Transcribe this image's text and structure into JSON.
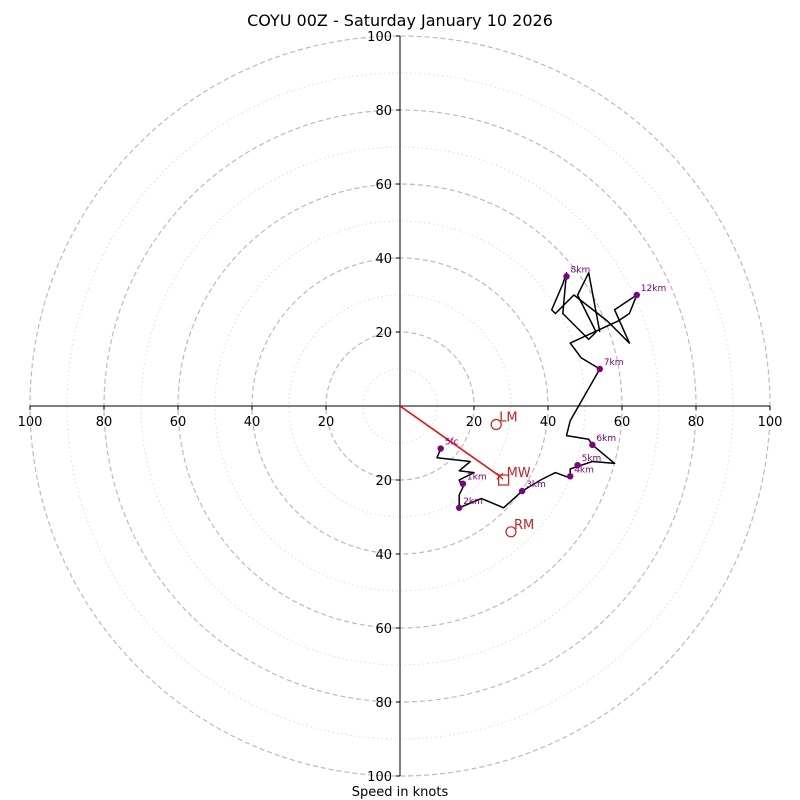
{
  "chart_data": {
    "type": "hodograph",
    "title": "COYU 00Z - Saturday January 10 2026",
    "xlabel": "Speed in knots",
    "xlim": [
      -100,
      100
    ],
    "ylim": [
      -100,
      100
    ],
    "major_rings": [
      20,
      40,
      60,
      80,
      100
    ],
    "minor_rings": [
      10,
      30,
      50,
      70,
      90
    ],
    "x_ticks": [
      {
        "value": -100,
        "label": "100"
      },
      {
        "value": -80,
        "label": "80"
      },
      {
        "value": -60,
        "label": "60"
      },
      {
        "value": -40,
        "label": "40"
      },
      {
        "value": -20,
        "label": "20"
      },
      {
        "value": 20,
        "label": "20"
      },
      {
        "value": 40,
        "label": "40"
      },
      {
        "value": 60,
        "label": "60"
      },
      {
        "value": 80,
        "label": "80"
      },
      {
        "value": 100,
        "label": "100"
      }
    ],
    "y_ticks": [
      {
        "value": 100,
        "label": "100"
      },
      {
        "value": 80,
        "label": "80"
      },
      {
        "value": 60,
        "label": "60"
      },
      {
        "value": 40,
        "label": "40"
      },
      {
        "value": 20,
        "label": "20"
      },
      {
        "value": -20,
        "label": "20"
      },
      {
        "value": -40,
        "label": "40"
      },
      {
        "value": -60,
        "label": "60"
      },
      {
        "value": -80,
        "label": "80"
      },
      {
        "value": -100,
        "label": "100"
      }
    ],
    "trace": [
      [
        11,
        -11.5
      ],
      [
        10,
        -14
      ],
      [
        19,
        -15
      ],
      [
        16,
        -17.5
      ],
      [
        20,
        -18
      ],
      [
        16,
        -20
      ],
      [
        17,
        -22
      ],
      [
        16,
        -24
      ],
      [
        16,
        -27.5
      ],
      [
        22,
        -25
      ],
      [
        28,
        -27.5
      ],
      [
        33,
        -23
      ],
      [
        38,
        -20
      ],
      [
        42,
        -18
      ],
      [
        46,
        -19.5
      ],
      [
        46,
        -17
      ],
      [
        52,
        -15
      ],
      [
        58,
        -15.5
      ],
      [
        52,
        -10.5
      ],
      [
        51,
        -9
      ],
      [
        45,
        -8
      ],
      [
        46,
        -4
      ],
      [
        50,
        3
      ],
      [
        54,
        10
      ],
      [
        49,
        13
      ],
      [
        46,
        17
      ],
      [
        59,
        23
      ],
      [
        62,
        25
      ],
      [
        64,
        30
      ],
      [
        58,
        26
      ],
      [
        62,
        17
      ],
      [
        56,
        23
      ],
      [
        47,
        30
      ],
      [
        42,
        25
      ],
      [
        41,
        26
      ],
      [
        44,
        33
      ],
      [
        45,
        36
      ],
      [
        44,
        25
      ],
      [
        49,
        20
      ],
      [
        51,
        18
      ],
      [
        53,
        20
      ],
      [
        48,
        30
      ],
      [
        51,
        36
      ],
      [
        54,
        20
      ]
    ],
    "height_points": [
      {
        "label": "5fc",
        "u": 11,
        "v": -11.5
      },
      {
        "label": "1km",
        "u": 17,
        "v": -21
      },
      {
        "label": "2km",
        "u": 16,
        "v": -27.5
      },
      {
        "label": "3km",
        "u": 33,
        "v": -23
      },
      {
        "label": "4km",
        "u": 46,
        "v": -19
      },
      {
        "label": "5km",
        "u": 48,
        "v": -16
      },
      {
        "label": "6km",
        "u": 52,
        "v": -10.5
      },
      {
        "label": "7km",
        "u": 54,
        "v": 10
      },
      {
        "label": "8km",
        "u": 45,
        "v": 35
      },
      {
        "label": "12km",
        "u": 64,
        "v": 30
      }
    ],
    "storm_motion": {
      "line_color": "#ff0000",
      "shear_vector": {
        "u": 27,
        "v": -19
      },
      "LM": {
        "label": "LM",
        "u": 26,
        "v": -5
      },
      "MW": {
        "label": "MW",
        "u": 28,
        "v": -20
      },
      "RM": {
        "label": "RM",
        "u": 30,
        "v": -34
      }
    },
    "colors": {
      "trace": "#000000",
      "points": "#800080",
      "storm": "#cc2222",
      "major_ring": "#bbbbbb",
      "minor_ring": "#dddddd"
    }
  }
}
